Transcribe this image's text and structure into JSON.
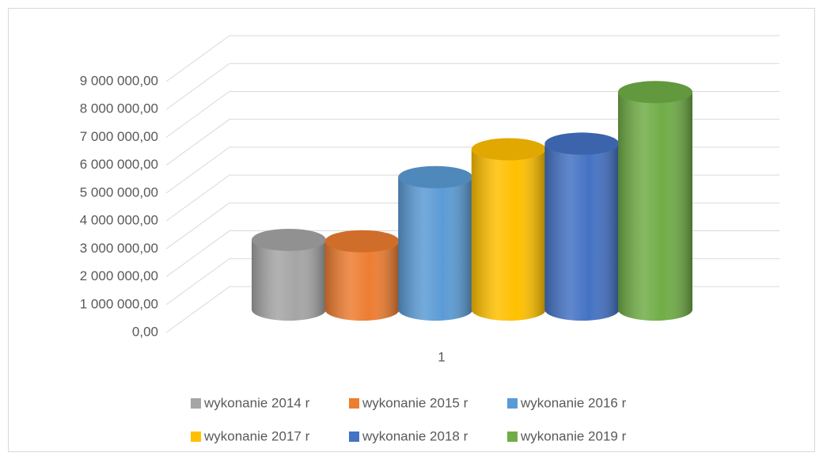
{
  "chart_data": {
    "type": "bar3d-cylinder",
    "categories": [
      "1"
    ],
    "series": [
      {
        "name": "wykonanie 2014 r",
        "color": "#a5a5a5",
        "values": [
          2500000
        ]
      },
      {
        "name": "wykonanie 2015 r",
        "color": "#ed7d31",
        "values": [
          2450000
        ]
      },
      {
        "name": "wykonanie 2016 r",
        "color": "#5b9bd5",
        "values": [
          4750000
        ]
      },
      {
        "name": "wykonanie 2017 r",
        "color": "#ffc000",
        "values": [
          5750000
        ]
      },
      {
        "name": "wykonanie 2018 r",
        "color": "#4472c4",
        "values": [
          5950000
        ]
      },
      {
        "name": "wykonanie 2019 r",
        "color": "#70ad47",
        "values": [
          7800000
        ]
      }
    ],
    "ylim": [
      0,
      9000000
    ],
    "yticks": [
      {
        "value": 0,
        "label": "0,00"
      },
      {
        "value": 1000000,
        "label": "1 000 000,00"
      },
      {
        "value": 2000000,
        "label": "2 000 000,00"
      },
      {
        "value": 3000000,
        "label": "3 000 000,00"
      },
      {
        "value": 4000000,
        "label": "4 000 000,00"
      },
      {
        "value": 5000000,
        "label": "5 000 000,00"
      },
      {
        "value": 6000000,
        "label": "6 000 000,00"
      },
      {
        "value": 7000000,
        "label": "7 000 000,00"
      },
      {
        "value": 8000000,
        "label": "8 000 000,00"
      },
      {
        "value": 9000000,
        "label": "9 000 000,00"
      }
    ],
    "grid": true,
    "legend": "bottom"
  }
}
